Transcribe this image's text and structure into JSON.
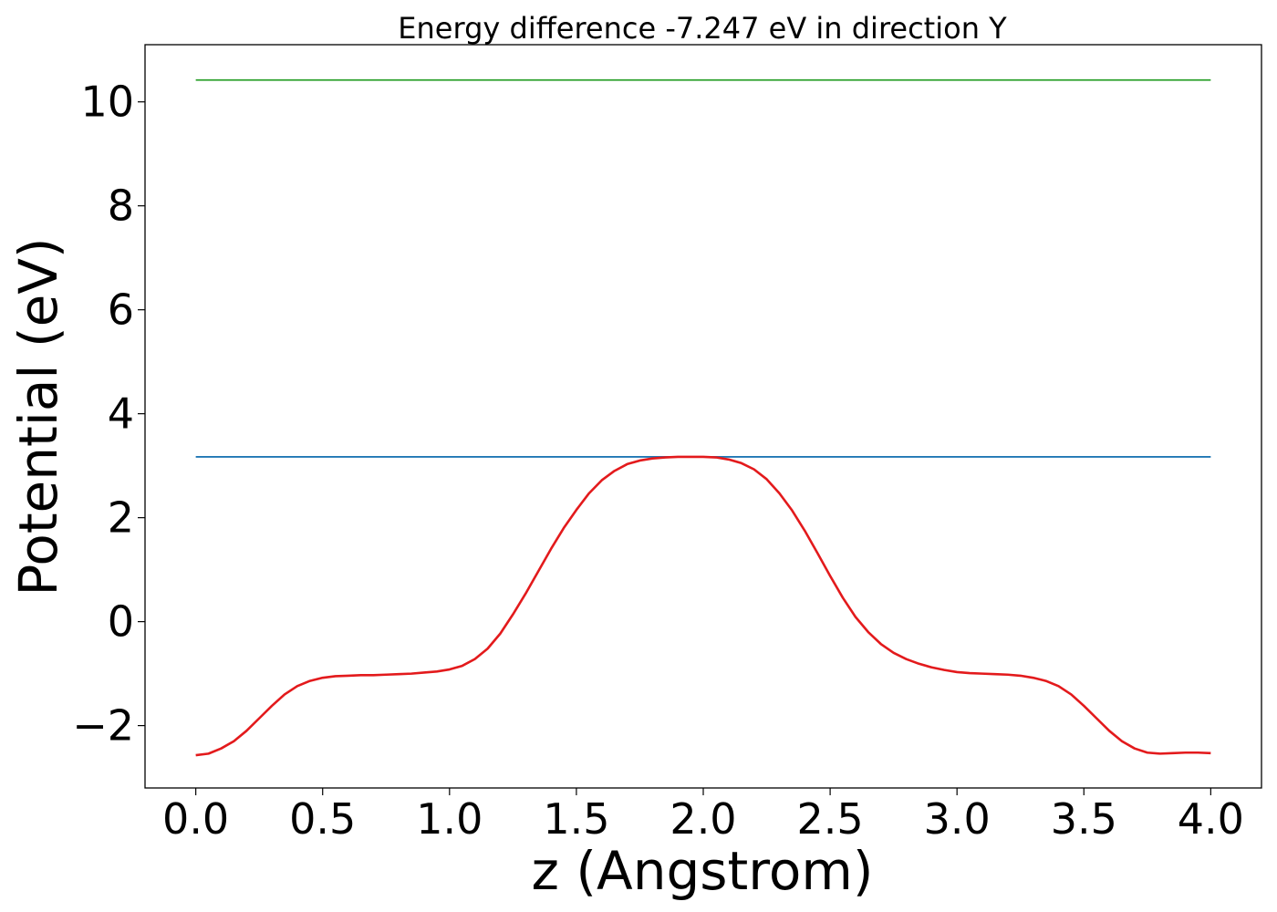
{
  "chart_data": {
    "type": "line",
    "title": "Energy difference -7.247 eV in direction Y",
    "xlabel": "z (Angstrom)",
    "ylabel": "Potential (eV)",
    "xlim": [
      -0.2,
      4.2
    ],
    "ylim": [
      -3.2,
      11.1
    ],
    "xticks": [
      0.0,
      0.5,
      1.0,
      1.5,
      2.0,
      2.5,
      3.0,
      3.5,
      4.0
    ],
    "xtick_labels": [
      "0.0",
      "0.5",
      "1.0",
      "1.5",
      "2.0",
      "2.5",
      "3.0",
      "3.5",
      "4.0"
    ],
    "yticks": [
      -2,
      0,
      2,
      4,
      6,
      8,
      10
    ],
    "ytick_labels": [
      "−2",
      "0",
      "2",
      "4",
      "6",
      "8",
      "10"
    ],
    "grid": false,
    "series": [
      {
        "color": "#2ca02c",
        "x": [
          0.0,
          4.0
        ],
        "y": [
          10.42,
          10.42
        ]
      },
      {
        "color": "#1f77b4",
        "x": [
          0.0,
          4.0
        ],
        "y": [
          3.17,
          3.17
        ]
      },
      {
        "color": "#e31a1c",
        "x": [
          0.0,
          0.05,
          0.1,
          0.15,
          0.2,
          0.25,
          0.3,
          0.35,
          0.4,
          0.45,
          0.5,
          0.55,
          0.6,
          0.65,
          0.7,
          0.75,
          0.8,
          0.85,
          0.9,
          0.95,
          1.0,
          1.05,
          1.1,
          1.15,
          1.2,
          1.25,
          1.3,
          1.35,
          1.4,
          1.45,
          1.5,
          1.55,
          1.6,
          1.65,
          1.7,
          1.75,
          1.8,
          1.85,
          1.9,
          1.95,
          2.0,
          2.05,
          2.1,
          2.15,
          2.2,
          2.25,
          2.3,
          2.35,
          2.4,
          2.45,
          2.5,
          2.55,
          2.6,
          2.65,
          2.7,
          2.75,
          2.8,
          2.85,
          2.9,
          2.95,
          3.0,
          3.05,
          3.1,
          3.15,
          3.2,
          3.25,
          3.3,
          3.35,
          3.4,
          3.45,
          3.5,
          3.55,
          3.6,
          3.65,
          3.7,
          3.75,
          3.8,
          3.85,
          3.9,
          3.95,
          4.0
        ],
        "y": [
          -2.57,
          -2.54,
          -2.44,
          -2.3,
          -2.1,
          -1.86,
          -1.62,
          -1.4,
          -1.24,
          -1.14,
          -1.08,
          -1.05,
          -1.04,
          -1.03,
          -1.03,
          -1.02,
          -1.01,
          -1.0,
          -0.98,
          -0.96,
          -0.92,
          -0.85,
          -0.72,
          -0.52,
          -0.23,
          0.14,
          0.54,
          0.97,
          1.4,
          1.8,
          2.15,
          2.47,
          2.72,
          2.9,
          3.03,
          3.1,
          3.14,
          3.16,
          3.17,
          3.17,
          3.17,
          3.16,
          3.12,
          3.05,
          2.93,
          2.74,
          2.47,
          2.14,
          1.75,
          1.32,
          0.88,
          0.46,
          0.09,
          -0.2,
          -0.43,
          -0.6,
          -0.72,
          -0.81,
          -0.88,
          -0.93,
          -0.97,
          -0.99,
          -1.0,
          -1.01,
          -1.02,
          -1.04,
          -1.08,
          -1.14,
          -1.24,
          -1.4,
          -1.62,
          -1.86,
          -2.1,
          -2.3,
          -2.44,
          -2.52,
          -2.54,
          -2.53,
          -2.52,
          -2.52,
          -2.53
        ]
      }
    ]
  }
}
